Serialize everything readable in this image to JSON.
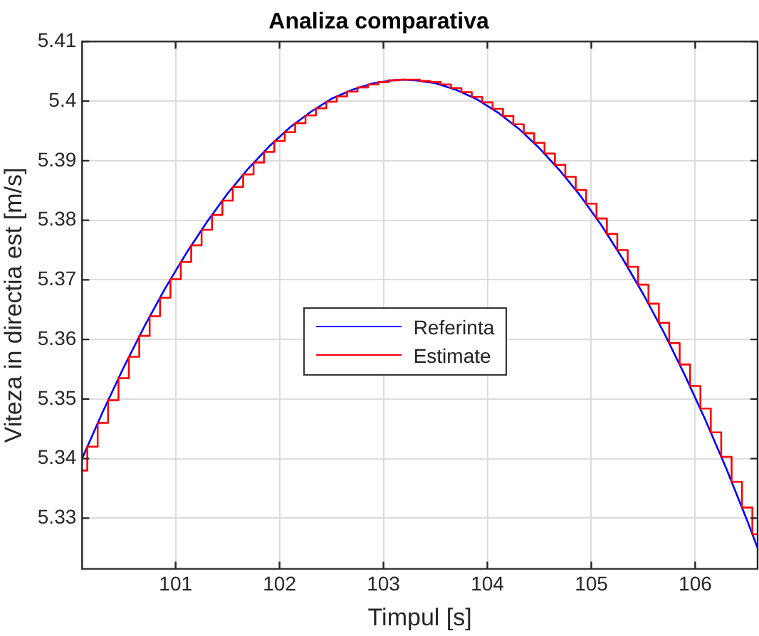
{
  "chart_data": {
    "type": "line",
    "title": "Analiza comparativa",
    "xlabel": "Timpul [s]",
    "ylabel": "Viteza in directia est [m/s]",
    "xlim": [
      100.1,
      106.6
    ],
    "xticks": [
      101,
      102,
      103,
      104,
      105,
      106
    ],
    "ylim": [
      5.3215,
      5.41
    ],
    "yticks": [
      5.33,
      5.34,
      5.35,
      5.36,
      5.37,
      5.38,
      5.39,
      5.4,
      5.41
    ],
    "grid": true,
    "legend": "center",
    "marker": "none",
    "line_style": "solid",
    "series": [
      {
        "name": "Referinta",
        "color": "#0000ff",
        "type": "line",
        "x": [
          100.1,
          100.3,
          100.5,
          100.7,
          100.9,
          101.1,
          101.3,
          101.5,
          101.7,
          101.9,
          102.1,
          102.3,
          102.5,
          102.7,
          102.9,
          103.1,
          103.2,
          103.3,
          103.5,
          103.7,
          103.9,
          104.1,
          104.3,
          104.5,
          104.7,
          104.9,
          105.1,
          105.3,
          105.5,
          105.7,
          105.9,
          106.1,
          106.3,
          106.5,
          106.6
        ],
        "values": [
          5.34,
          5.3479,
          5.3553,
          5.3622,
          5.3686,
          5.3744,
          5.3797,
          5.3845,
          5.3887,
          5.3924,
          5.3956,
          5.3982,
          5.4004,
          5.4019,
          5.403,
          5.4035,
          5.4036,
          5.4035,
          5.403,
          5.4019,
          5.4003,
          5.3981,
          5.3954,
          5.3921,
          5.3883,
          5.384,
          5.3791,
          5.3736,
          5.3676,
          5.3611,
          5.354,
          5.3464,
          5.3383,
          5.3296,
          5.325
        ]
      },
      {
        "name": "Estimate",
        "color": "#ff0000",
        "type": "step",
        "x": [
          100.1,
          100.15,
          100.25,
          100.35,
          100.45,
          100.55,
          100.65,
          100.75,
          100.85,
          100.95,
          101.05,
          101.15,
          101.25,
          101.35,
          101.45,
          101.55,
          101.65,
          101.75,
          101.85,
          101.95,
          102.05,
          102.15,
          102.25,
          102.35,
          102.45,
          102.55,
          102.65,
          102.75,
          102.85,
          102.95,
          103.05,
          103.15,
          103.25,
          103.35,
          103.45,
          103.55,
          103.65,
          103.75,
          103.85,
          103.95,
          104.05,
          104.15,
          104.25,
          104.35,
          104.45,
          104.55,
          104.65,
          104.75,
          104.85,
          104.95,
          105.05,
          105.15,
          105.25,
          105.35,
          105.45,
          105.55,
          105.65,
          105.75,
          105.85,
          105.95,
          106.05,
          106.15,
          106.25,
          106.35,
          106.45,
          106.55,
          106.6
        ],
        "values": [
          5.338,
          5.342,
          5.346,
          5.3498,
          5.3535,
          5.3571,
          5.3606,
          5.3639,
          5.367,
          5.3701,
          5.373,
          5.3758,
          5.3784,
          5.3809,
          5.3833,
          5.3856,
          5.3877,
          5.3897,
          5.3915,
          5.3933,
          5.3948,
          5.3963,
          5.3976,
          5.3988,
          5.3999,
          5.4008,
          5.4016,
          5.4023,
          5.4028,
          5.4032,
          5.4035,
          5.4036,
          5.4036,
          5.4034,
          5.4032,
          5.4028,
          5.4022,
          5.4015,
          5.4007,
          5.3998,
          5.3987,
          5.3975,
          5.3961,
          5.3946,
          5.393,
          5.3912,
          5.3893,
          5.3873,
          5.3851,
          5.3828,
          5.3803,
          5.3777,
          5.375,
          5.3722,
          5.3692,
          5.366,
          5.3628,
          5.3594,
          5.3558,
          5.3522,
          5.3484,
          5.3444,
          5.3403,
          5.3361,
          5.3318,
          5.3273,
          5.3273
        ]
      }
    ]
  }
}
